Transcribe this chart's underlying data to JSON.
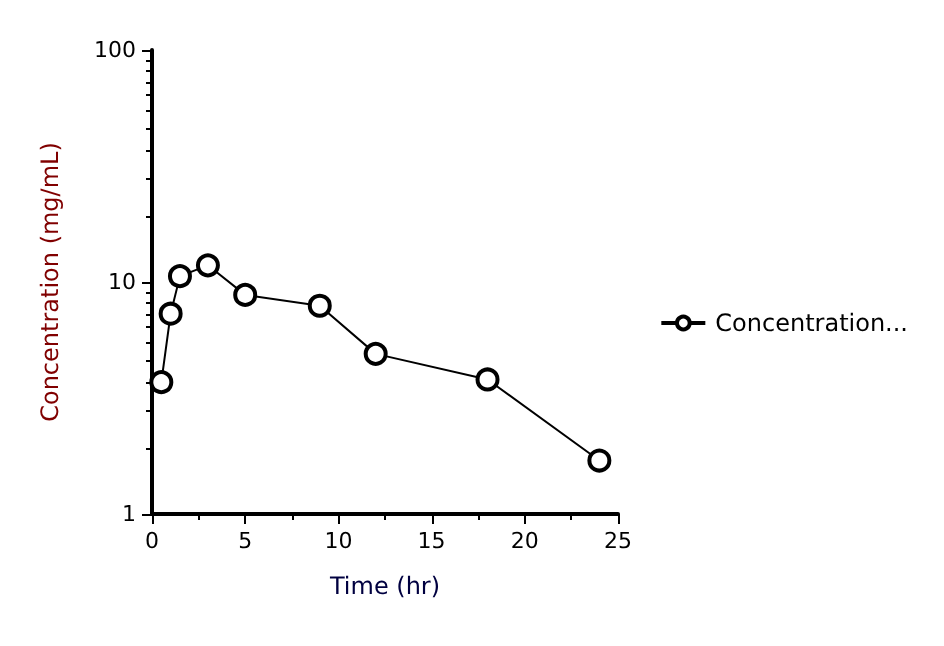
{
  "chart_data": {
    "type": "line",
    "xlabel": "Time (hr)",
    "ylabel": "Concentration (mg/mL)",
    "x": [
      0.5,
      1,
      1.5,
      3,
      5,
      9,
      12,
      18,
      24
    ],
    "series": [
      {
        "name": "Concentration...",
        "color": "#000000",
        "values": [
          3.7,
          7.3,
          10.6,
          11.8,
          8.8,
          7.9,
          4.9,
          3.8,
          1.7
        ]
      }
    ],
    "xlim": [
      0,
      25
    ],
    "xticks": [
      0,
      5,
      10,
      15,
      20,
      25
    ],
    "ylim": [
      1,
      100
    ],
    "yticks": [
      1,
      10,
      100
    ],
    "log": "y",
    "legend": "right",
    "marker": "circle",
    "grid": false
  }
}
